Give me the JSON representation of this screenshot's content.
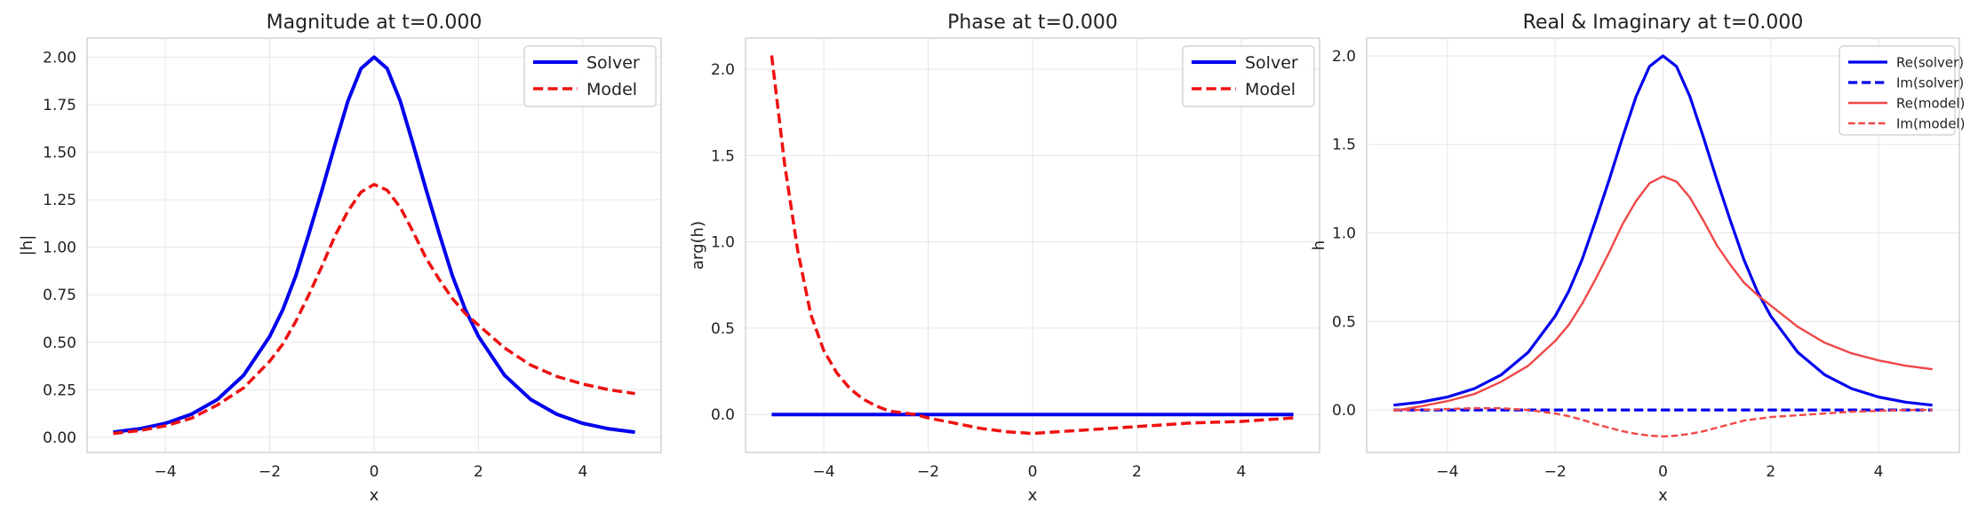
{
  "chart_data": [
    {
      "type": "line",
      "title": "Magnitude at t=0.000",
      "xlabel": "x",
      "ylabel": "|h|",
      "xlim": [
        -5.5,
        5.5
      ],
      "ylim": [
        -0.08,
        2.1
      ],
      "xticks": [
        -4,
        -2,
        0,
        2,
        4
      ],
      "xtick_labels": [
        "−4",
        "−2",
        "0",
        "2",
        "4"
      ],
      "yticks": [
        0,
        0.25,
        0.5,
        0.75,
        1.0,
        1.25,
        1.5,
        1.75,
        2.0
      ],
      "ytick_labels": [
        "0.00",
        "0.25",
        "0.50",
        "0.75",
        "1.00",
        "1.25",
        "1.50",
        "1.75",
        "2.00"
      ],
      "grid": true,
      "legend": "top-right",
      "x": [
        -5,
        -4.5,
        -4,
        -3.5,
        -3,
        -2.5,
        -2,
        -1.75,
        -1.5,
        -1.25,
        -1,
        -0.75,
        -0.5,
        -0.25,
        0,
        0.25,
        0.5,
        0.75,
        1,
        1.25,
        1.5,
        1.75,
        2,
        2.5,
        3,
        3.5,
        4,
        4.5,
        5
      ],
      "series": [
        {
          "name": "Solver",
          "color": "#0000ee",
          "dash": "solid",
          "width": 4,
          "values": [
            0.027,
            0.044,
            0.073,
            0.121,
            0.199,
            0.326,
            0.53,
            0.67,
            0.85,
            1.07,
            1.3,
            1.54,
            1.77,
            1.94,
            2.0,
            1.94,
            1.77,
            1.54,
            1.3,
            1.07,
            0.85,
            0.67,
            0.53,
            0.326,
            0.199,
            0.121,
            0.073,
            0.044,
            0.027
          ]
        },
        {
          "name": "Model",
          "color": "#ee1111",
          "dash": "dashed",
          "width": 3.5,
          "values": [
            0.02,
            0.035,
            0.06,
            0.1,
            0.17,
            0.26,
            0.4,
            0.49,
            0.61,
            0.75,
            0.9,
            1.06,
            1.19,
            1.29,
            1.33,
            1.3,
            1.21,
            1.08,
            0.94,
            0.83,
            0.73,
            0.65,
            0.59,
            0.47,
            0.38,
            0.32,
            0.28,
            0.25,
            0.23
          ]
        }
      ]
    },
    {
      "type": "line",
      "title": "Phase at t=0.000",
      "xlabel": "x",
      "ylabel": "arg(h)",
      "xlim": [
        -5.5,
        5.5
      ],
      "ylim": [
        -0.22,
        2.18
      ],
      "xticks": [
        -4,
        -2,
        0,
        2,
        4
      ],
      "xtick_labels": [
        "−4",
        "−2",
        "0",
        "2",
        "4"
      ],
      "yticks": [
        0,
        0.5,
        1.0,
        1.5,
        2.0
      ],
      "ytick_labels": [
        "0.0",
        "0.5",
        "1.0",
        "1.5",
        "2.0"
      ],
      "grid": true,
      "legend": "top-right",
      "x": [
        -5,
        -4.75,
        -4.5,
        -4.25,
        -4,
        -3.75,
        -3.5,
        -3.25,
        -3,
        -2.75,
        -2.5,
        -2.25,
        -2,
        -1.5,
        -1,
        -0.5,
        0,
        0.5,
        1,
        1.5,
        2,
        2.5,
        3,
        3.5,
        4,
        4.5,
        5
      ],
      "series": [
        {
          "name": "Solver",
          "color": "#0000ee",
          "dash": "solid",
          "width": 4,
          "values": [
            0,
            0,
            0,
            0,
            0,
            0,
            0,
            0,
            0,
            0,
            0,
            0,
            0,
            0,
            0,
            0,
            0,
            0,
            0,
            0,
            0,
            0,
            0,
            0,
            0,
            0,
            0
          ]
        },
        {
          "name": "Model",
          "color": "#ee1111",
          "dash": "dashed",
          "width": 3.5,
          "values": [
            2.08,
            1.45,
            0.95,
            0.58,
            0.37,
            0.24,
            0.15,
            0.09,
            0.05,
            0.02,
            0.01,
            0.0,
            -0.02,
            -0.05,
            -0.08,
            -0.1,
            -0.11,
            -0.1,
            -0.09,
            -0.08,
            -0.07,
            -0.06,
            -0.05,
            -0.045,
            -0.04,
            -0.03,
            -0.02
          ]
        }
      ]
    },
    {
      "type": "line",
      "title": "Real & Imaginary at t=0.000",
      "xlabel": "x",
      "ylabel": "h",
      "xlim": [
        -5.5,
        5.5
      ],
      "ylim": [
        -0.24,
        2.1
      ],
      "xticks": [
        -4,
        -2,
        0,
        2,
        4
      ],
      "xtick_labels": [
        "−4",
        "−2",
        "0",
        "2",
        "4"
      ],
      "yticks": [
        0,
        0.5,
        1.0,
        1.5,
        2.0
      ],
      "ytick_labels": [
        "0.0",
        "0.5",
        "1.0",
        "1.5",
        "2.0"
      ],
      "grid": true,
      "legend": "top-right",
      "x": [
        -5,
        -4.5,
        -4,
        -3.5,
        -3,
        -2.5,
        -2,
        -1.75,
        -1.5,
        -1.25,
        -1,
        -0.75,
        -0.5,
        -0.25,
        0,
        0.25,
        0.5,
        0.75,
        1,
        1.25,
        1.5,
        1.75,
        2,
        2.5,
        3,
        3.5,
        4,
        4.5,
        5
      ],
      "series": [
        {
          "name": "Re(solver)",
          "color": "#0000ee",
          "dash": "solid",
          "width": 3.2,
          "values": [
            0.027,
            0.044,
            0.073,
            0.121,
            0.199,
            0.326,
            0.53,
            0.67,
            0.85,
            1.07,
            1.3,
            1.54,
            1.77,
            1.94,
            2.0,
            1.94,
            1.77,
            1.54,
            1.3,
            1.07,
            0.85,
            0.67,
            0.53,
            0.326,
            0.199,
            0.121,
            0.073,
            0.044,
            0.027
          ]
        },
        {
          "name": "Im(solver)",
          "color": "#0000ee",
          "dash": "dashed",
          "width": 3.2,
          "values": [
            0,
            0,
            0,
            0,
            0,
            0,
            0,
            0,
            0,
            0,
            0,
            0,
            0,
            0,
            0,
            0,
            0,
            0,
            0,
            0,
            0,
            0,
            0,
            0,
            0,
            0,
            0,
            0,
            0
          ]
        },
        {
          "name": "Re(model)",
          "color": "#f04848",
          "dash": "solid",
          "width": 2.4,
          "values": [
            -0.005,
            0.02,
            0.05,
            0.09,
            0.16,
            0.25,
            0.39,
            0.48,
            0.6,
            0.74,
            0.89,
            1.05,
            1.18,
            1.28,
            1.32,
            1.29,
            1.2,
            1.07,
            0.93,
            0.82,
            0.72,
            0.65,
            0.59,
            0.47,
            0.38,
            0.32,
            0.28,
            0.25,
            0.23
          ]
        },
        {
          "name": "Im(model)",
          "color": "#f04848",
          "dash": "dashed",
          "width": 2.4,
          "values": [
            0.0,
            0.0,
            0.005,
            0.01,
            0.01,
            0.0,
            -0.02,
            -0.035,
            -0.055,
            -0.08,
            -0.1,
            -0.12,
            -0.135,
            -0.145,
            -0.15,
            -0.145,
            -0.135,
            -0.12,
            -0.1,
            -0.08,
            -0.06,
            -0.05,
            -0.04,
            -0.03,
            -0.02,
            -0.01,
            -0.005,
            0.0,
            0.0
          ]
        }
      ]
    }
  ]
}
